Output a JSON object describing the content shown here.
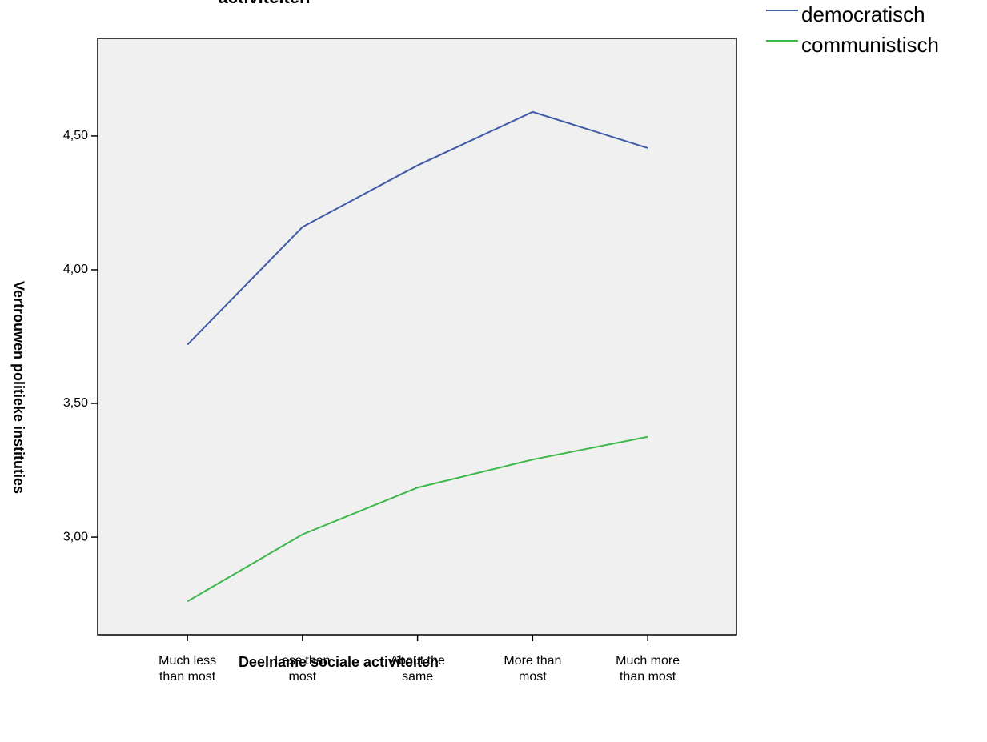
{
  "chart_data": {
    "type": "line",
    "title": "activiteiten",
    "x_label": "Deelname sociale  activiteiten",
    "y_label": "Vertrouwen politieke instituties",
    "categories": [
      [
        "Much less",
        "than most"
      ],
      [
        "Less than",
        "most"
      ],
      [
        "About the",
        "same"
      ],
      [
        "More than",
        "most"
      ],
      [
        "Much more",
        "than most"
      ]
    ],
    "series": [
      {
        "name": "democratisch",
        "color": "#3e5ba8",
        "values": [
          3.72,
          4.16,
          4.39,
          4.59,
          4.455
        ]
      },
      {
        "name": "communistisch",
        "color": "#3cb84a",
        "values": [
          2.76,
          3.01,
          3.185,
          3.29,
          3.375
        ]
      }
    ],
    "ylim": [
      2.635,
      4.865
    ],
    "yticks": [
      {
        "value": 3.0,
        "label": "3,00"
      },
      {
        "value": 3.5,
        "label": "3,50"
      },
      {
        "value": 4.0,
        "label": "4,00"
      },
      {
        "value": 4.5,
        "label": "4,50"
      }
    ],
    "legend": "top-right"
  }
}
